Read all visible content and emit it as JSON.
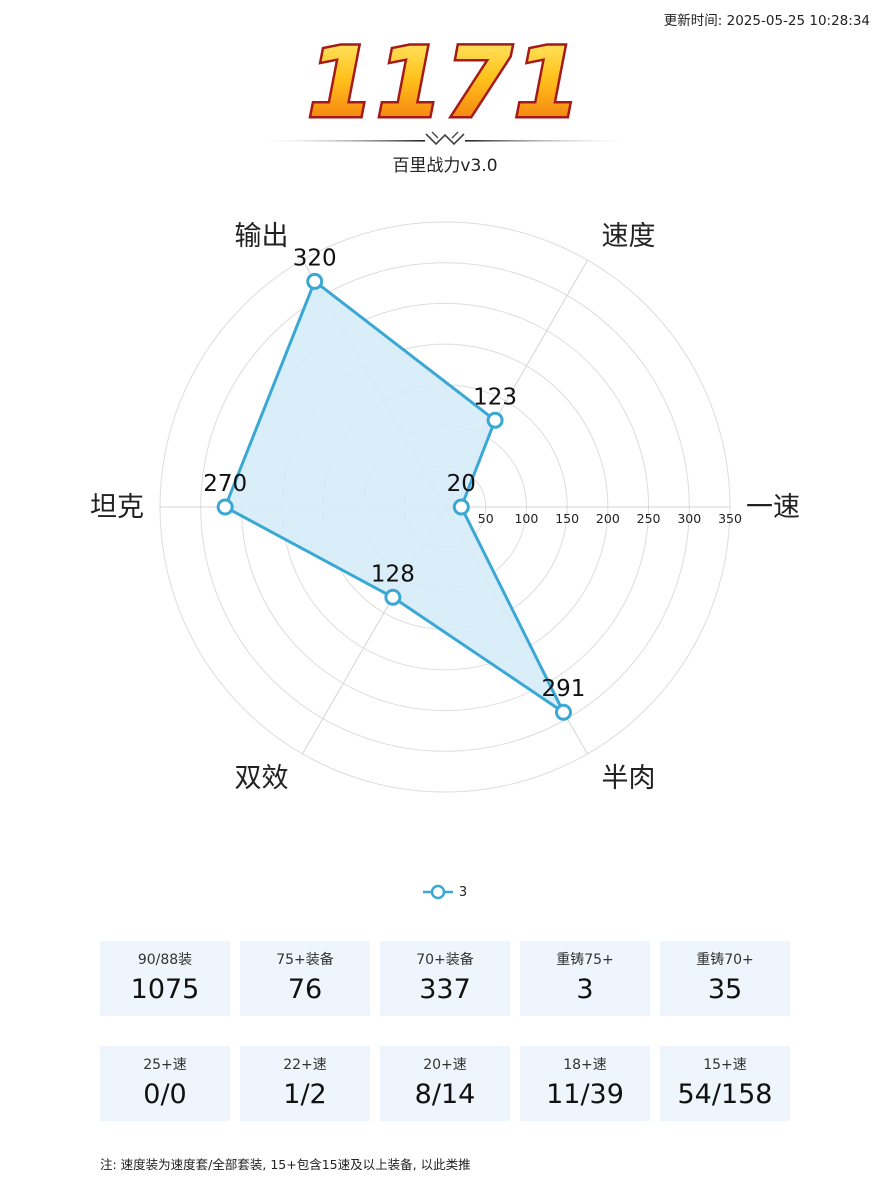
{
  "update_time": "更新时间: 2025-05-25 10:28:34",
  "score": "1171",
  "version": "百里战力v3.0",
  "colors": {
    "series_line": "#3aa8d4",
    "series_fill": "#d6ecf8",
    "card_bg": "#eef5fc",
    "score_outline": "#a51a18",
    "score_top": "#fff07a",
    "score_bottom": "#f07a0c"
  },
  "chart_data": {
    "type": "radar",
    "indicators": [
      "一速",
      "速度",
      "输出",
      "坦克",
      "双效",
      "半肉"
    ],
    "scale": {
      "min": 0,
      "max": 350,
      "step": 50
    },
    "tick_labels": [
      "50",
      "100",
      "150",
      "200",
      "250",
      "300",
      "350"
    ],
    "grid": true,
    "legend_position": "bottom",
    "series": [
      {
        "name": "3",
        "values": [
          20,
          123,
          320,
          270,
          128,
          291
        ]
      }
    ]
  },
  "stats_row1": [
    {
      "label": "90/88装",
      "value": "1075"
    },
    {
      "label": "75+装备",
      "value": "76"
    },
    {
      "label": "70+装备",
      "value": "337"
    },
    {
      "label": "重铸75+",
      "value": "3"
    },
    {
      "label": "重铸70+",
      "value": "35"
    }
  ],
  "stats_row2": [
    {
      "label": "25+速",
      "value": "0/0"
    },
    {
      "label": "22+速",
      "value": "1/2"
    },
    {
      "label": "20+速",
      "value": "8/14"
    },
    {
      "label": "18+速",
      "value": "11/39"
    },
    {
      "label": "15+速",
      "value": "54/158"
    }
  ],
  "note": "注: 速度装为速度套/全部套装, 15+包含15速及以上装备, 以此类推"
}
